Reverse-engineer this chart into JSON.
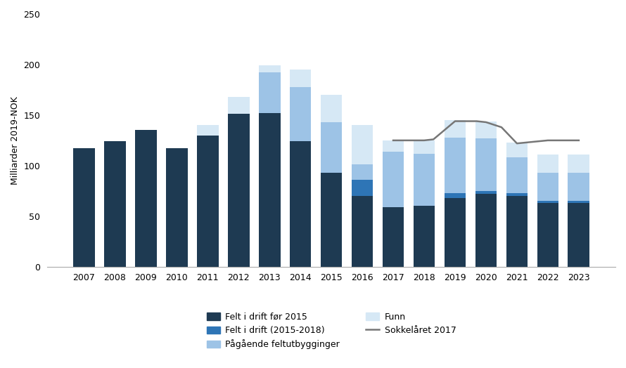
{
  "years": [
    2007,
    2008,
    2009,
    2010,
    2011,
    2012,
    2013,
    2014,
    2015,
    2016,
    2017,
    2018,
    2019,
    2020,
    2021,
    2022,
    2023
  ],
  "felt_i_drift_for_2015": [
    117,
    124,
    135,
    117,
    130,
    151,
    152,
    124,
    93,
    70,
    59,
    60,
    68,
    72,
    70,
    63,
    63
  ],
  "felt_i_drift_2015_2018": [
    0,
    0,
    0,
    0,
    0,
    0,
    0,
    0,
    0,
    16,
    0,
    0,
    5,
    3,
    3,
    2,
    2
  ],
  "pagaende_feltutbygginger": [
    0,
    0,
    0,
    0,
    0,
    0,
    40,
    54,
    50,
    15,
    55,
    52,
    55,
    52,
    35,
    28,
    28
  ],
  "funn": [
    0,
    0,
    0,
    0,
    10,
    17,
    7,
    17,
    27,
    39,
    11,
    13,
    17,
    17,
    15,
    18,
    18
  ],
  "sokkelaret_2017_x": [
    2017,
    2018,
    2018.3,
    2019,
    2019.7,
    2020,
    2020.5,
    2021,
    2022,
    2022.5,
    2023
  ],
  "sokkelaret_2017_y": [
    125,
    125,
    126,
    144,
    144,
    143,
    138,
    122,
    125,
    125,
    125
  ],
  "color_felt_for_2015": "#1e3a52",
  "color_felt_2015_2018": "#2e75b6",
  "color_pagaende": "#9dc3e6",
  "color_funn": "#d6e8f5",
  "color_line": "#767676",
  "ylabel": "Milliarder 2019-NOK",
  "ylim": [
    0,
    250
  ],
  "yticks": [
    0,
    50,
    100,
    150,
    200,
    250
  ],
  "legend_felt_for_2015": "Felt i drift før 2015",
  "legend_felt_2015_2018": "Felt i drift (2015-2018)",
  "legend_pagaende": "Pågående feltutbygginger",
  "legend_funn": "Funn",
  "legend_line": "Sokkelåret 2017",
  "background_color": "#ffffff"
}
